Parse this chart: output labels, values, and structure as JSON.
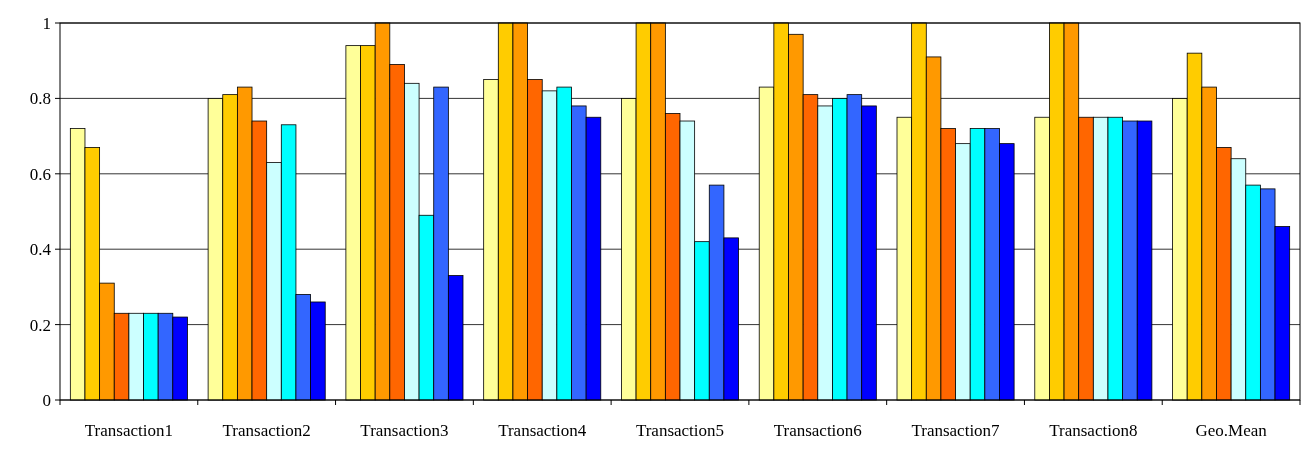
{
  "chart_data": {
    "type": "bar",
    "categories": [
      "Transaction1",
      "Transaction2",
      "Transaction3",
      "Transaction4",
      "Transaction5",
      "Transaction6",
      "Transaction7",
      "Transaction8",
      "Geo.Mean"
    ],
    "series": [
      {
        "color": "#ffff99",
        "values": [
          0.72,
          0.8,
          0.94,
          0.85,
          0.8,
          0.83,
          0.75,
          0.75,
          0.8
        ]
      },
      {
        "color": "#ffcc00",
        "values": [
          0.67,
          0.81,
          0.94,
          1,
          1,
          1,
          1,
          1,
          0.92
        ]
      },
      {
        "color": "#ff9900",
        "values": [
          0.31,
          0.83,
          1,
          1,
          1,
          0.97,
          0.91,
          1,
          0.83
        ]
      },
      {
        "color": "#ff6600",
        "values": [
          0.23,
          0.74,
          0.89,
          0.85,
          0.76,
          0.81,
          0.72,
          0.75,
          0.67
        ]
      },
      {
        "color": "#ccffff",
        "values": [
          0.23,
          0.63,
          0.84,
          0.82,
          0.74,
          0.78,
          0.68,
          0.75,
          0.64
        ]
      },
      {
        "color": "#00ffff",
        "values": [
          0.23,
          0.73,
          0.49,
          0.83,
          0.42,
          0.8,
          0.72,
          0.75,
          0.57
        ]
      },
      {
        "color": "#3366ff",
        "values": [
          0.23,
          0.28,
          0.83,
          0.78,
          0.57,
          0.81,
          0.72,
          0.74,
          0.56
        ]
      },
      {
        "color": "#0000ff",
        "values": [
          0.22,
          0.26,
          0.33,
          0.75,
          0.43,
          0.78,
          0.68,
          0.74,
          0.46
        ]
      }
    ],
    "ylim": [
      0,
      1
    ],
    "yticks": [
      0,
      0.2,
      0.4,
      0.6,
      0.8,
      1
    ],
    "grid": "y"
  }
}
